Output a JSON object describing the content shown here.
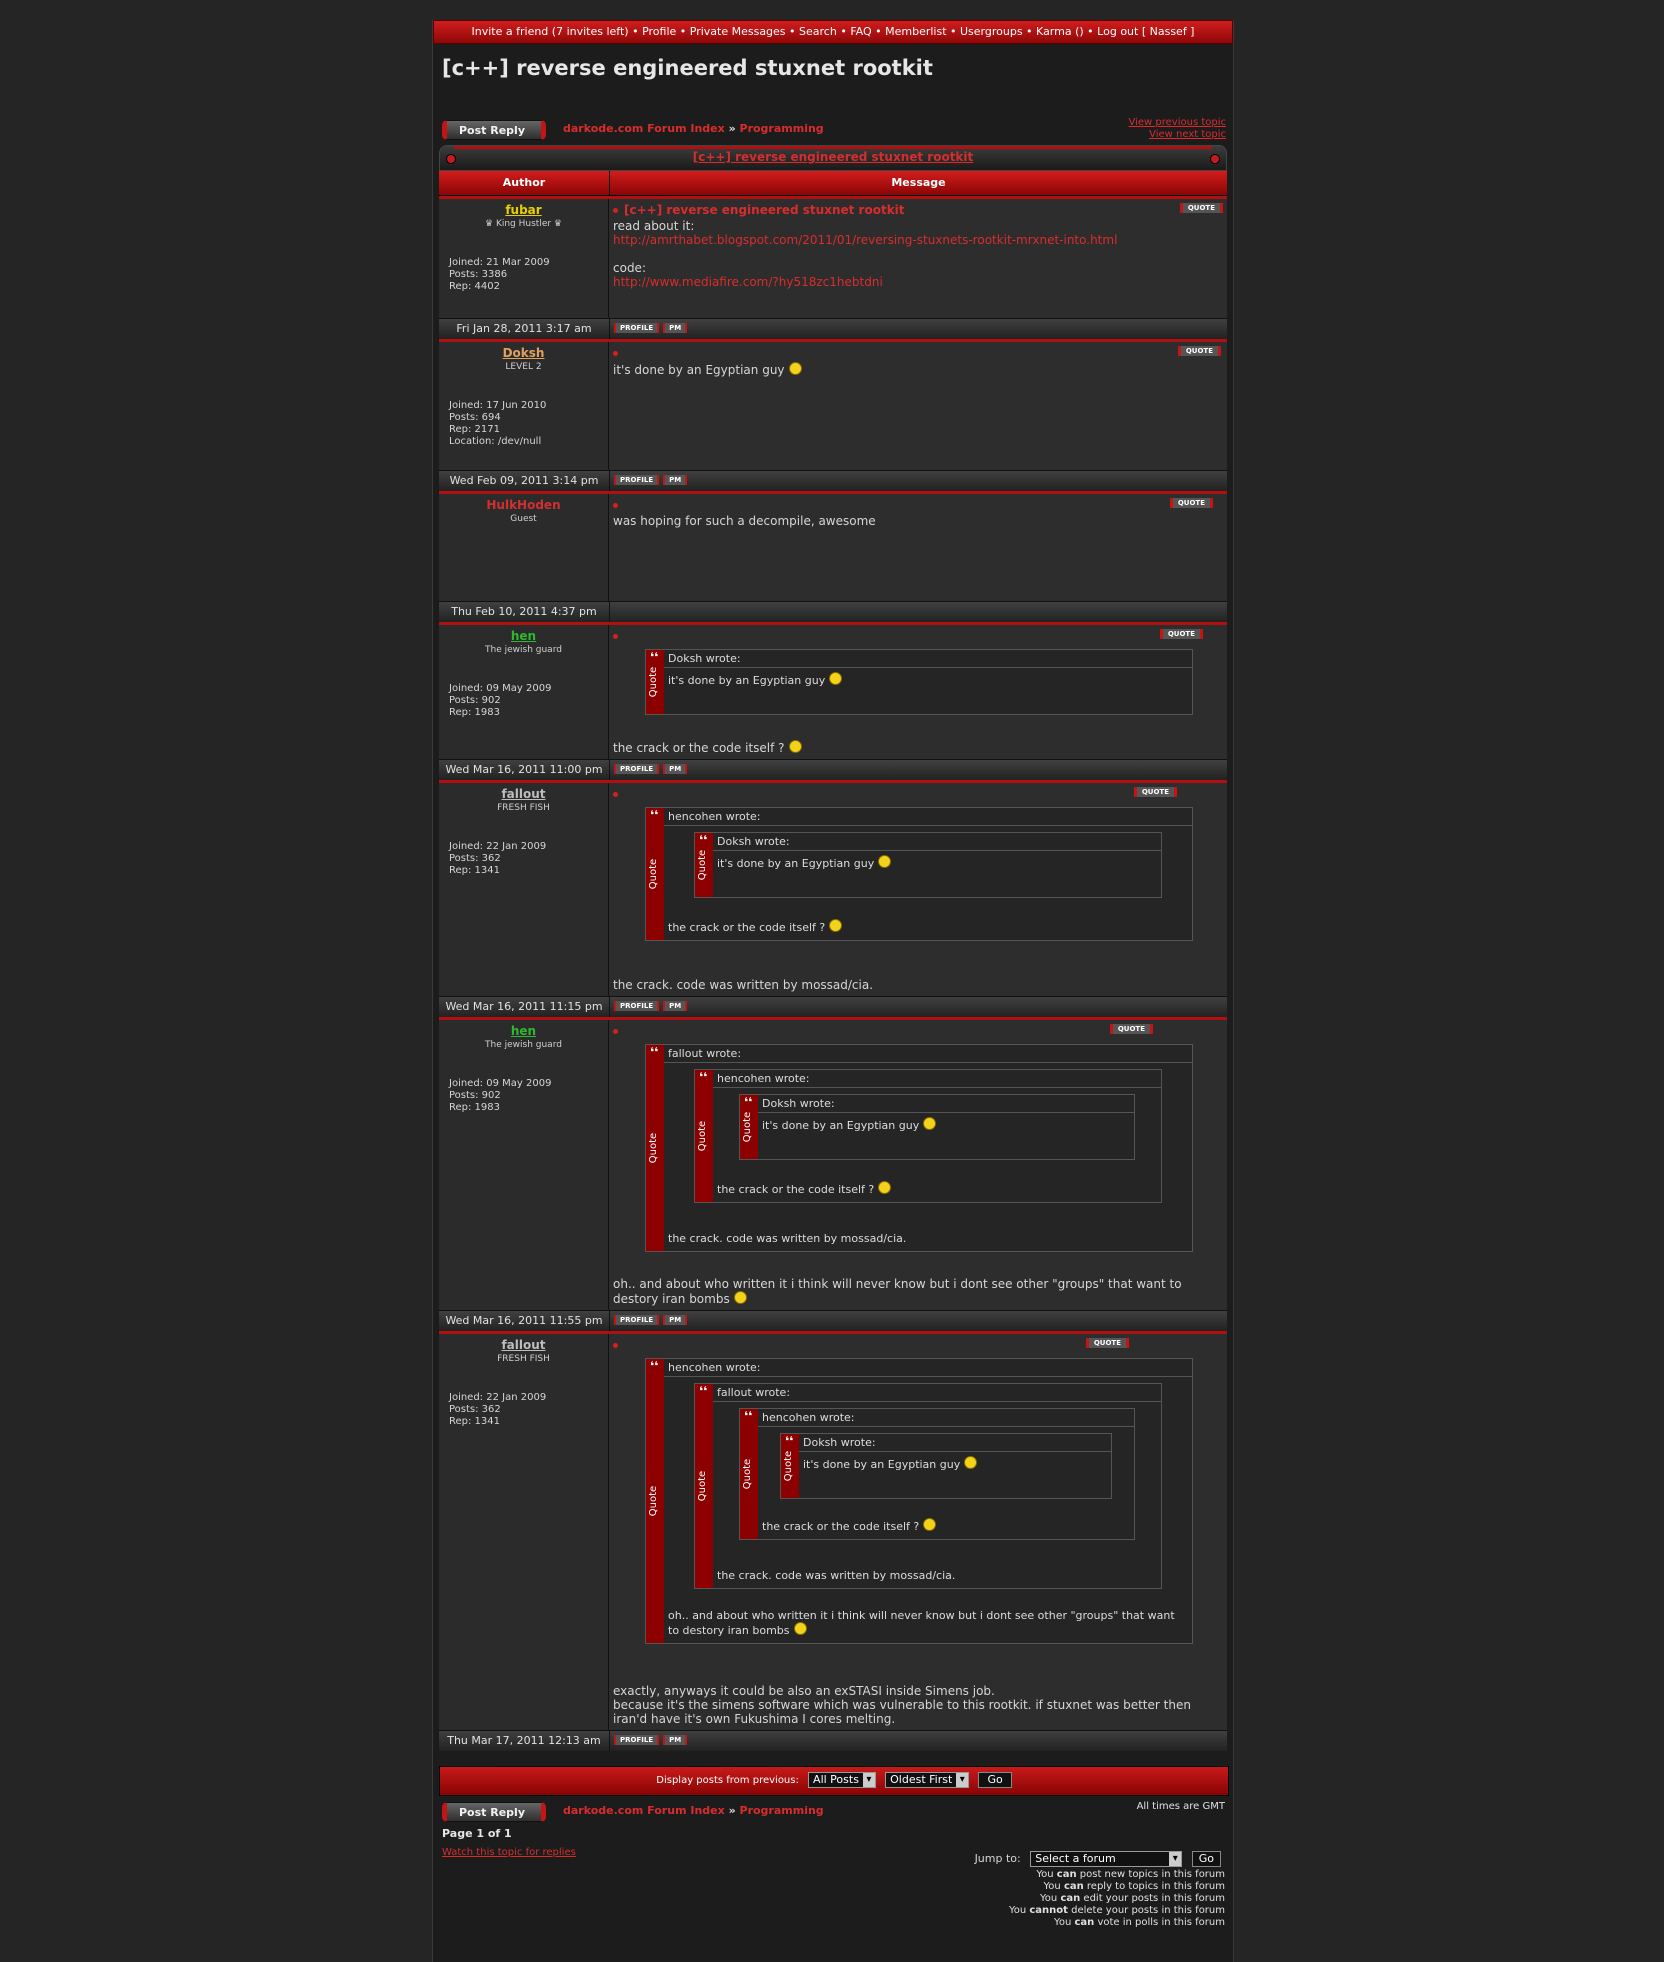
{
  "topnav": {
    "items": [
      "Invite a friend (7 invites left)",
      "Profile",
      "Private Messages",
      "Search",
      "FAQ",
      "Memberlist",
      "Usergroups",
      "Karma ()",
      "Log out [ Nassef ]"
    ],
    "sep": " • "
  },
  "page_title": "[c++] reverse engineered stuxnet rootkit",
  "post_reply_label": "Post Reply",
  "breadcrumb": {
    "index": "darkode.com Forum Index",
    "sep": "»",
    "forum": "Programming"
  },
  "view_prev": "View previous topic",
  "view_next": "View next topic",
  "topic_bar_title": "[c++] reverse engineered stuxnet rootkit",
  "table_headers": {
    "author": "Author",
    "message": "Message"
  },
  "buttons": {
    "quote": "QUOTE",
    "profile": "PROFILE",
    "pm": "PM"
  },
  "quote_vertical": "Quote",
  "posts": [
    {
      "name": "fubar",
      "rank": "♛ King Hustler ♛",
      "joined": "Joined: 21 Mar 2009",
      "posts": "Posts: 3386",
      "rep": "Rep: 4402",
      "location": "",
      "date": "Fri Jan 28, 2011 3:17 am",
      "subject": "[c++] reverse engineered stuxnet rootkit",
      "line1": "read about it:",
      "link1": "http://amrthabet.blogspot.com/2011/01/reversing-stuxnets-rootkit-mrxnet-into.html",
      "line2": "code:",
      "link2": "http://www.mediafire.com/?hy518zc1hebtdni"
    },
    {
      "name": "Doksh",
      "rank": "LEVEL 2",
      "joined": "Joined: 17 Jun 2010",
      "posts": "Posts: 694",
      "rep": "Rep: 2171",
      "location": "Location: /dev/null",
      "date": "Wed Feb 09, 2011 3:14 pm",
      "text": "it's done by an Egyptian guy"
    },
    {
      "name": "HulkHoden",
      "rank": "Guest",
      "date": "Thu Feb 10, 2011 4:37 pm",
      "text": "was hoping for such a decompile, awesome"
    },
    {
      "name": "hen",
      "rank": "The jewish guard",
      "joined": "Joined: 09 May 2009",
      "posts": "Posts: 902",
      "rep": "Rep: 1983",
      "date": "Wed Mar 16, 2011 11:00 pm",
      "q1_head": "Doksh wrote:",
      "q1_text": "it's done by an Egyptian guy",
      "text": "the crack or the code itself ?"
    },
    {
      "name": "fallout",
      "rank": "FRESH FISH",
      "joined": "Joined: 22 Jan 2009",
      "posts": "Posts: 362",
      "rep": "Rep: 1341",
      "date": "Wed Mar 16, 2011 11:15 pm",
      "q1_head": "hencohen wrote:",
      "q2_head": "Doksh wrote:",
      "q2_text": "it's done by an Egyptian guy",
      "q1_text": "the crack or the code itself ?",
      "text": "the crack. code was written by mossad/cia."
    },
    {
      "name": "hen",
      "rank": "The jewish guard",
      "joined": "Joined: 09 May 2009",
      "posts": "Posts: 902",
      "rep": "Rep: 1983",
      "date": "Wed Mar 16, 2011 11:55 pm",
      "q1_head": "fallout wrote:",
      "q2_head": "hencohen wrote:",
      "q3_head": "Doksh wrote:",
      "q3_text": "it's done by an Egyptian guy",
      "q2_text": "the crack or the code itself ?",
      "q1_text": "the crack. code was written by mossad/cia.",
      "text": "oh.. and about who written it i think will never know but i dont see other \"groups\" that want to destory iran bombs"
    },
    {
      "name": "fallout",
      "rank": "FRESH FISH",
      "joined": "Joined: 22 Jan 2009",
      "posts": "Posts: 362",
      "rep": "Rep: 1341",
      "date": "Thu Mar 17, 2011 12:13 am",
      "q1_head": "hencohen wrote:",
      "q2_head": "fallout wrote:",
      "q3_head": "hencohen wrote:",
      "q4_head": "Doksh wrote:",
      "q4_text": "it's done by an Egyptian guy",
      "q3_text": "the crack or the code itself ?",
      "q2_text": "the crack. code was written by mossad/cia.",
      "q1_text": "oh.. and about who written it i think will never know but i dont see other \"groups\" that want to destory iran bombs",
      "text_l1": "exactly, anyways it could be also an exSTASI inside Simens job.",
      "text_l2": "because it's the simens software which was vulnerable to this rootkit. if stuxnet was better then iran'd have it's own Fukushima I cores melting."
    }
  ],
  "display_bar": {
    "label": "Display posts from previous:",
    "sel1": "All Posts",
    "sel2": "Oldest First",
    "go": "Go"
  },
  "all_times": "All times are GMT",
  "page_of": "Page 1 of 1",
  "watch": "Watch this topic for replies",
  "jump": {
    "label": "Jump to:",
    "select": "Select a forum",
    "go": "Go"
  },
  "permissions": [
    {
      "pre": "You ",
      "b": "can",
      "post": " post new topics in this forum"
    },
    {
      "pre": "You ",
      "b": "can",
      "post": " reply to topics in this forum"
    },
    {
      "pre": "You ",
      "b": "can",
      "post": " edit your posts in this forum"
    },
    {
      "pre": "You ",
      "b": "cannot",
      "post": " delete your posts in this forum"
    },
    {
      "pre": "You ",
      "b": "can",
      "post": " vote in polls in this forum"
    }
  ],
  "colors": {
    "accent": "#c41414",
    "link": "#d92d2d",
    "user_gold": "#e8d000",
    "user_tan": "#e0a060",
    "user_gray": "#bdbdbd",
    "user_green": "#2fb82f",
    "user_red": "#d03030"
  }
}
